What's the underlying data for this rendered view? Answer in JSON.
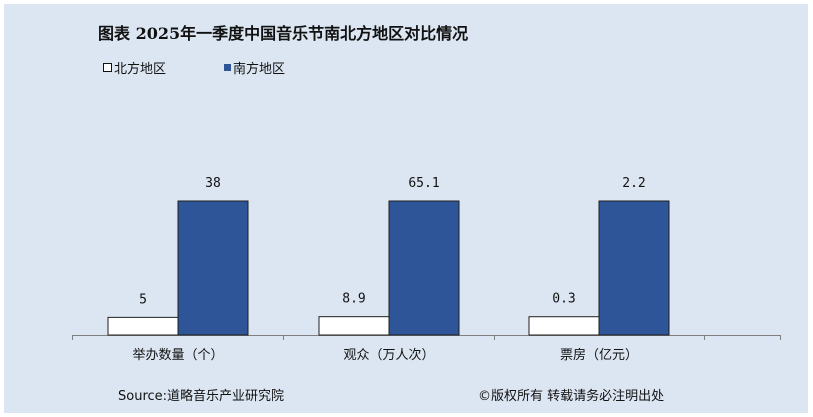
{
  "title": "图表  2025年一季度中国音乐节南北方地区对比情况",
  "legend": [
    {
      "name": "北方地区",
      "color": "#ffffff"
    },
    {
      "name": "南方地区",
      "color": "#2e5597"
    }
  ],
  "footer": {
    "source": "Source:道略音乐产业研究院",
    "copyright": "©版权所有   转载请务必注明出处"
  },
  "colors": {
    "background": "#dce6f2",
    "north_bar": "#ffffff",
    "south_bar": "#2e5597",
    "bar_outline": "#1f1f1f"
  },
  "chart_data": {
    "type": "bar",
    "categories": [
      "举办数量（个）",
      "观众（万人次）",
      "票房（亿元）"
    ],
    "series": [
      {
        "name": "北方地区",
        "values": [
          5,
          8.9,
          0.3
        ],
        "labels": [
          "5",
          "8.9",
          "0.3"
        ]
      },
      {
        "name": "南方地区",
        "values": [
          38,
          65.1,
          2.2
        ],
        "labels": [
          "38",
          "65.1",
          "2.2"
        ]
      }
    ],
    "note": "each category is scaled relative to its own maximum (South region)",
    "grid": false,
    "legend_position": "top-left"
  }
}
